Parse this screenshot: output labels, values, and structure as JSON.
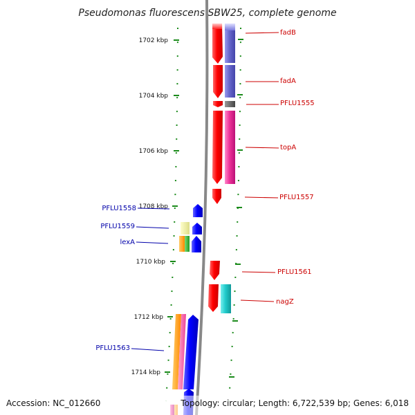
{
  "title": "Pseudomonas fluorescens SBW25, complete genome",
  "footer": {
    "accession": "Accession: NC_012660",
    "summary": "Topology: circular; Length: 6,722,539 bp; Genes: 6,018"
  },
  "colors": {
    "backbone": "#8a8a8a",
    "tick": "#1a8a1a",
    "forward_label": "#cc0000",
    "reverse_label": "#0000aa",
    "red": "#ff0000",
    "blue": "#0000ff",
    "purple": "#6666cc",
    "magenta": "#ee3399",
    "cyan": "#22cccc",
    "grey": "#666666",
    "orange": "#ff9900",
    "green": "#33bb33",
    "yellow": "#eeee99",
    "pink": "#ff66aa"
  },
  "ticks": [
    {
      "kbp": 1702,
      "label": "1702 kbp"
    },
    {
      "kbp": 1704,
      "label": "1704 kbp"
    },
    {
      "kbp": 1706,
      "label": "1706 kbp"
    },
    {
      "kbp": 1708,
      "label": "1708 kbp"
    },
    {
      "kbp": 1710,
      "label": "1710 kbp"
    },
    {
      "kbp": 1712,
      "label": "1712 kbp"
    },
    {
      "kbp": 1714,
      "label": "1714 kbp"
    }
  ],
  "genes": [
    {
      "name": "fadB",
      "strand": "forward"
    },
    {
      "name": "fadA",
      "strand": "forward"
    },
    {
      "name": "PFLU1555",
      "strand": "forward"
    },
    {
      "name": "topA",
      "strand": "forward"
    },
    {
      "name": "PFLU1557",
      "strand": "forward"
    },
    {
      "name": "PFLU1561",
      "strand": "forward"
    },
    {
      "name": "nagZ",
      "strand": "forward"
    },
    {
      "name": "PFLU1558",
      "strand": "reverse"
    },
    {
      "name": "PFLU1559",
      "strand": "reverse"
    },
    {
      "name": "lexA",
      "strand": "reverse"
    },
    {
      "name": "PFLU1563",
      "strand": "reverse"
    }
  ]
}
